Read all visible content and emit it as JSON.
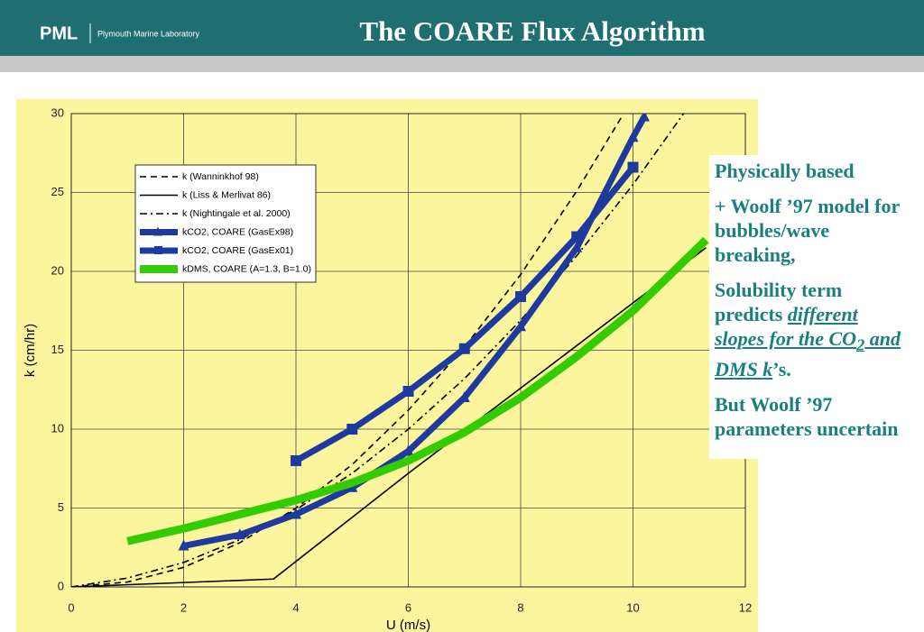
{
  "header": {
    "logo": "PML",
    "organization": "Plymouth Marine Laboratory",
    "title": "The COARE  Flux Algorithm"
  },
  "sidebar": {
    "paragraphs": [
      [
        "Physically based"
      ],
      [
        "+ Woolf ’97 model for bubbles/wave breaking,"
      ],
      [
        "Solubility term predicts ",
        "different slopes for the CO",
        "2",
        " and DMS ",
        "k",
        "’s."
      ],
      [
        "But Woolf ’97 parameters uncertain"
      ]
    ]
  },
  "chart_data": {
    "type": "line",
    "xlabel": "U (m/s)",
    "ylabel": "k (cm/hr)",
    "xlim": [
      0,
      12
    ],
    "ylim": [
      0,
      30
    ],
    "xticks": [
      0,
      2,
      4,
      6,
      8,
      10,
      12
    ],
    "yticks": [
      0,
      5,
      10,
      15,
      20,
      25,
      30
    ],
    "grid": true,
    "legend": "upper left",
    "series": [
      {
        "name": "k (Wanninkhof 98)",
        "color": "#000000",
        "dash": "dashed",
        "x": [
          0,
          1,
          2,
          3,
          4,
          5,
          6,
          7,
          8,
          9,
          9.8
        ],
        "values": [
          0,
          0.31,
          1.24,
          2.8,
          5,
          7.75,
          11.2,
          15.2,
          19.8,
          25.1,
          29.8
        ]
      },
      {
        "name": "k (Liss & Merlivat 86)",
        "color": "#000000",
        "dash": "solid",
        "x": [
          0,
          3.6,
          6,
          8,
          10,
          11.3
        ],
        "values": [
          0,
          0.5,
          7.2,
          12.6,
          18,
          21.5
        ]
      },
      {
        "name": "k (Nightingale et al. 2000)",
        "color": "#000000",
        "dash": "dashdot",
        "x": [
          0,
          1,
          2,
          3,
          4,
          5,
          6,
          7,
          8,
          9,
          10,
          10.9
        ],
        "values": [
          0,
          0.56,
          1.55,
          3,
          4.9,
          7.2,
          10,
          13.2,
          16.9,
          21,
          25.5,
          30
        ]
      },
      {
        "name": "kCO2, COARE (GasEx98)",
        "color": "#1f3a9e",
        "dash": "solid",
        "marker": "triangle",
        "x": [
          2,
          3,
          4,
          5,
          6,
          7,
          8,
          9,
          10,
          10.2
        ],
        "values": [
          2.6,
          3.3,
          4.6,
          6.3,
          8.6,
          12,
          16.5,
          21.5,
          28.5,
          29.8
        ]
      },
      {
        "name": "kCO2, COARE (GasEx01)",
        "color": "#1f3a9e",
        "dash": "solid",
        "marker": "square",
        "x": [
          4,
          5,
          6,
          7,
          8,
          9,
          10
        ],
        "values": [
          8,
          10,
          12.4,
          15.1,
          18.4,
          22.2,
          26.6
        ]
      },
      {
        "name": "kDMS, COARE (A=1.3, B=1.0)",
        "color": "#33cc00",
        "dash": "solid",
        "x": [
          1,
          2,
          3,
          4,
          5,
          6,
          7,
          8,
          9,
          10,
          11.3
        ],
        "values": [
          2.9,
          3.7,
          4.6,
          5.5,
          6.6,
          8,
          9.8,
          12,
          14.6,
          17.5,
          22
        ]
      }
    ]
  }
}
